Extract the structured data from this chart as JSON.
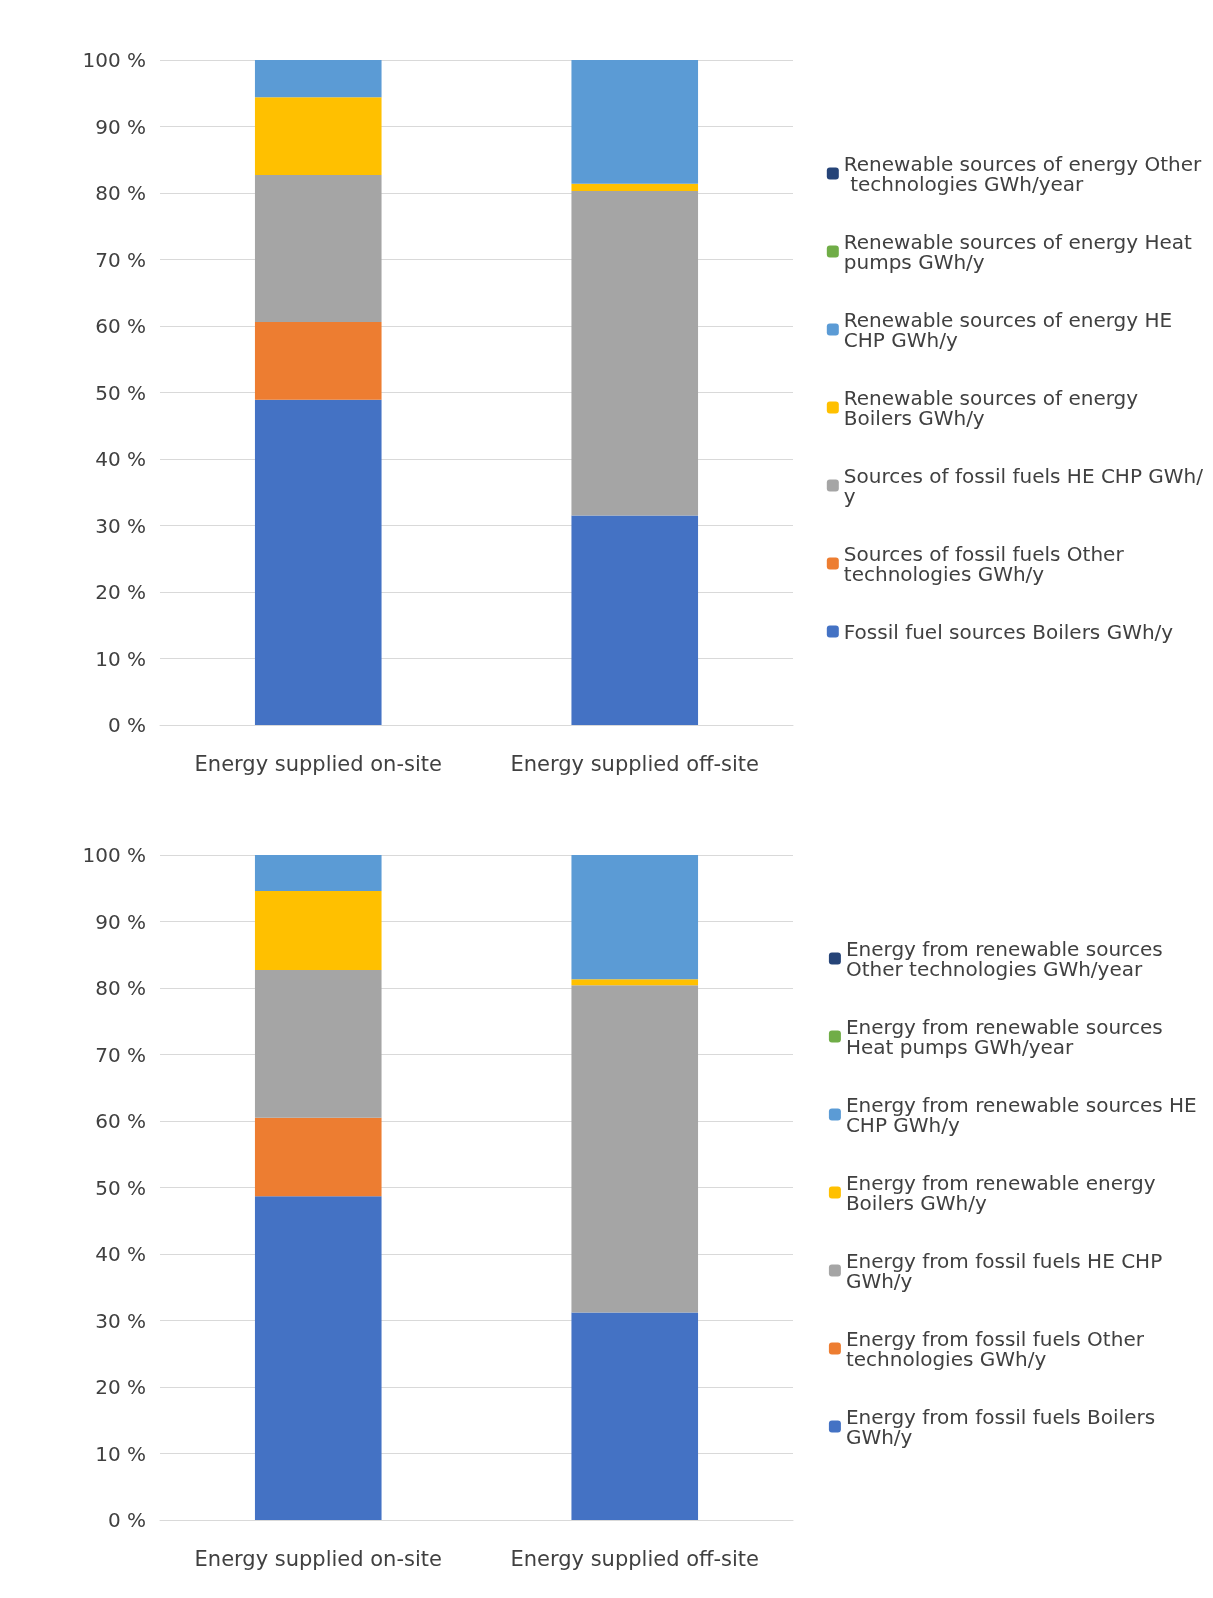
{
  "chart_data": [
    {
      "type": "bar",
      "stacked": true,
      "categories": [
        "Energy supplied on-site",
        "Energy supplied off-site"
      ],
      "ylim": [
        0,
        100
      ],
      "yticks": [
        {
          "value": 0,
          "label": "0 %"
        },
        {
          "value": 10,
          "label": "10 %"
        },
        {
          "value": 20,
          "label": "20 %"
        },
        {
          "value": 30,
          "label": "30 %"
        },
        {
          "value": 40,
          "label": "40 %"
        },
        {
          "value": 50,
          "label": "50 %"
        },
        {
          "value": 60,
          "label": "60 %"
        },
        {
          "value": 70,
          "label": "70 %"
        },
        {
          "value": 80,
          "label": "80 %"
        },
        {
          "value": 90,
          "label": "90 %"
        },
        {
          "value": 100,
          "label": "100 %"
        }
      ],
      "grid": "y",
      "legend": "right",
      "series": [
        {
          "name": "Fossil fuel sources Boilers GWh/y",
          "color": "#4472c4",
          "values": [
            48.9,
            31.5
          ]
        },
        {
          "name": "Sources of fossil fuels Other technologies GWh/y",
          "color": "#ed7d31",
          "values": [
            11.7,
            0
          ]
        },
        {
          "name": "Sources of fossil fuels HE CHP GWh/y",
          "color": "#a5a5a5",
          "values": [
            22.1,
            48.8
          ]
        },
        {
          "name": "Renewable sources of energy Boilers GWh/y",
          "color": "#ffc000",
          "values": [
            11.7,
            1.1
          ]
        },
        {
          "name": "Renewable sources of energy HE CHP GWh/y",
          "color": "#5b9bd5",
          "values": [
            5.6,
            18.6
          ]
        },
        {
          "name": "Renewable sources of energy Heat pumps GWh/y",
          "color": "#70ad47",
          "values": [
            0,
            0
          ]
        },
        {
          "name": "Renewable sources of energy Other technologies GWh/year",
          "color": "#264478",
          "values": [
            0,
            0
          ]
        }
      ]
    },
    {
      "type": "bar",
      "stacked": true,
      "categories": [
        "Energy supplied on-site",
        "Energy supplied off-site"
      ],
      "ylim": [
        0,
        100
      ],
      "yticks": [
        {
          "value": 0,
          "label": "0 %"
        },
        {
          "value": 10,
          "label": "10 %"
        },
        {
          "value": 20,
          "label": "20 %"
        },
        {
          "value": 30,
          "label": "30 %"
        },
        {
          "value": 40,
          "label": "40 %"
        },
        {
          "value": 50,
          "label": "50 %"
        },
        {
          "value": 60,
          "label": "60 %"
        },
        {
          "value": 70,
          "label": "70 %"
        },
        {
          "value": 80,
          "label": "80 %"
        },
        {
          "value": 90,
          "label": "90 %"
        },
        {
          "value": 100,
          "label": "100 %"
        }
      ],
      "grid": "y",
      "legend": "right",
      "series": [
        {
          "name": "Energy from fossil fuels Boilers GWh/y",
          "color": "#4472c4",
          "values": [
            48.7,
            31.2
          ]
        },
        {
          "name": "Energy from fossil fuels Other technologies GWh/y",
          "color": "#ed7d31",
          "values": [
            11.8,
            0
          ]
        },
        {
          "name": "Energy from fossil fuels HE CHP GWh/y",
          "color": "#a5a5a5",
          "values": [
            22.2,
            49.2
          ]
        },
        {
          "name": "Energy from renewable energy Boilers GWh/y",
          "color": "#ffc000",
          "values": [
            11.9,
            0.9
          ]
        },
        {
          "name": "Energy from renewable sources HE CHP GWh/y",
          "color": "#5b9bd5",
          "values": [
            5.4,
            18.7
          ]
        },
        {
          "name": "Energy from renewable sources Heat pumps GWh/year",
          "color": "#70ad47",
          "values": [
            0,
            0
          ]
        },
        {
          "name": "Energy from renewable sources Other technologies GWh/year",
          "color": "#264478",
          "values": [
            0,
            0
          ]
        }
      ]
    }
  ]
}
